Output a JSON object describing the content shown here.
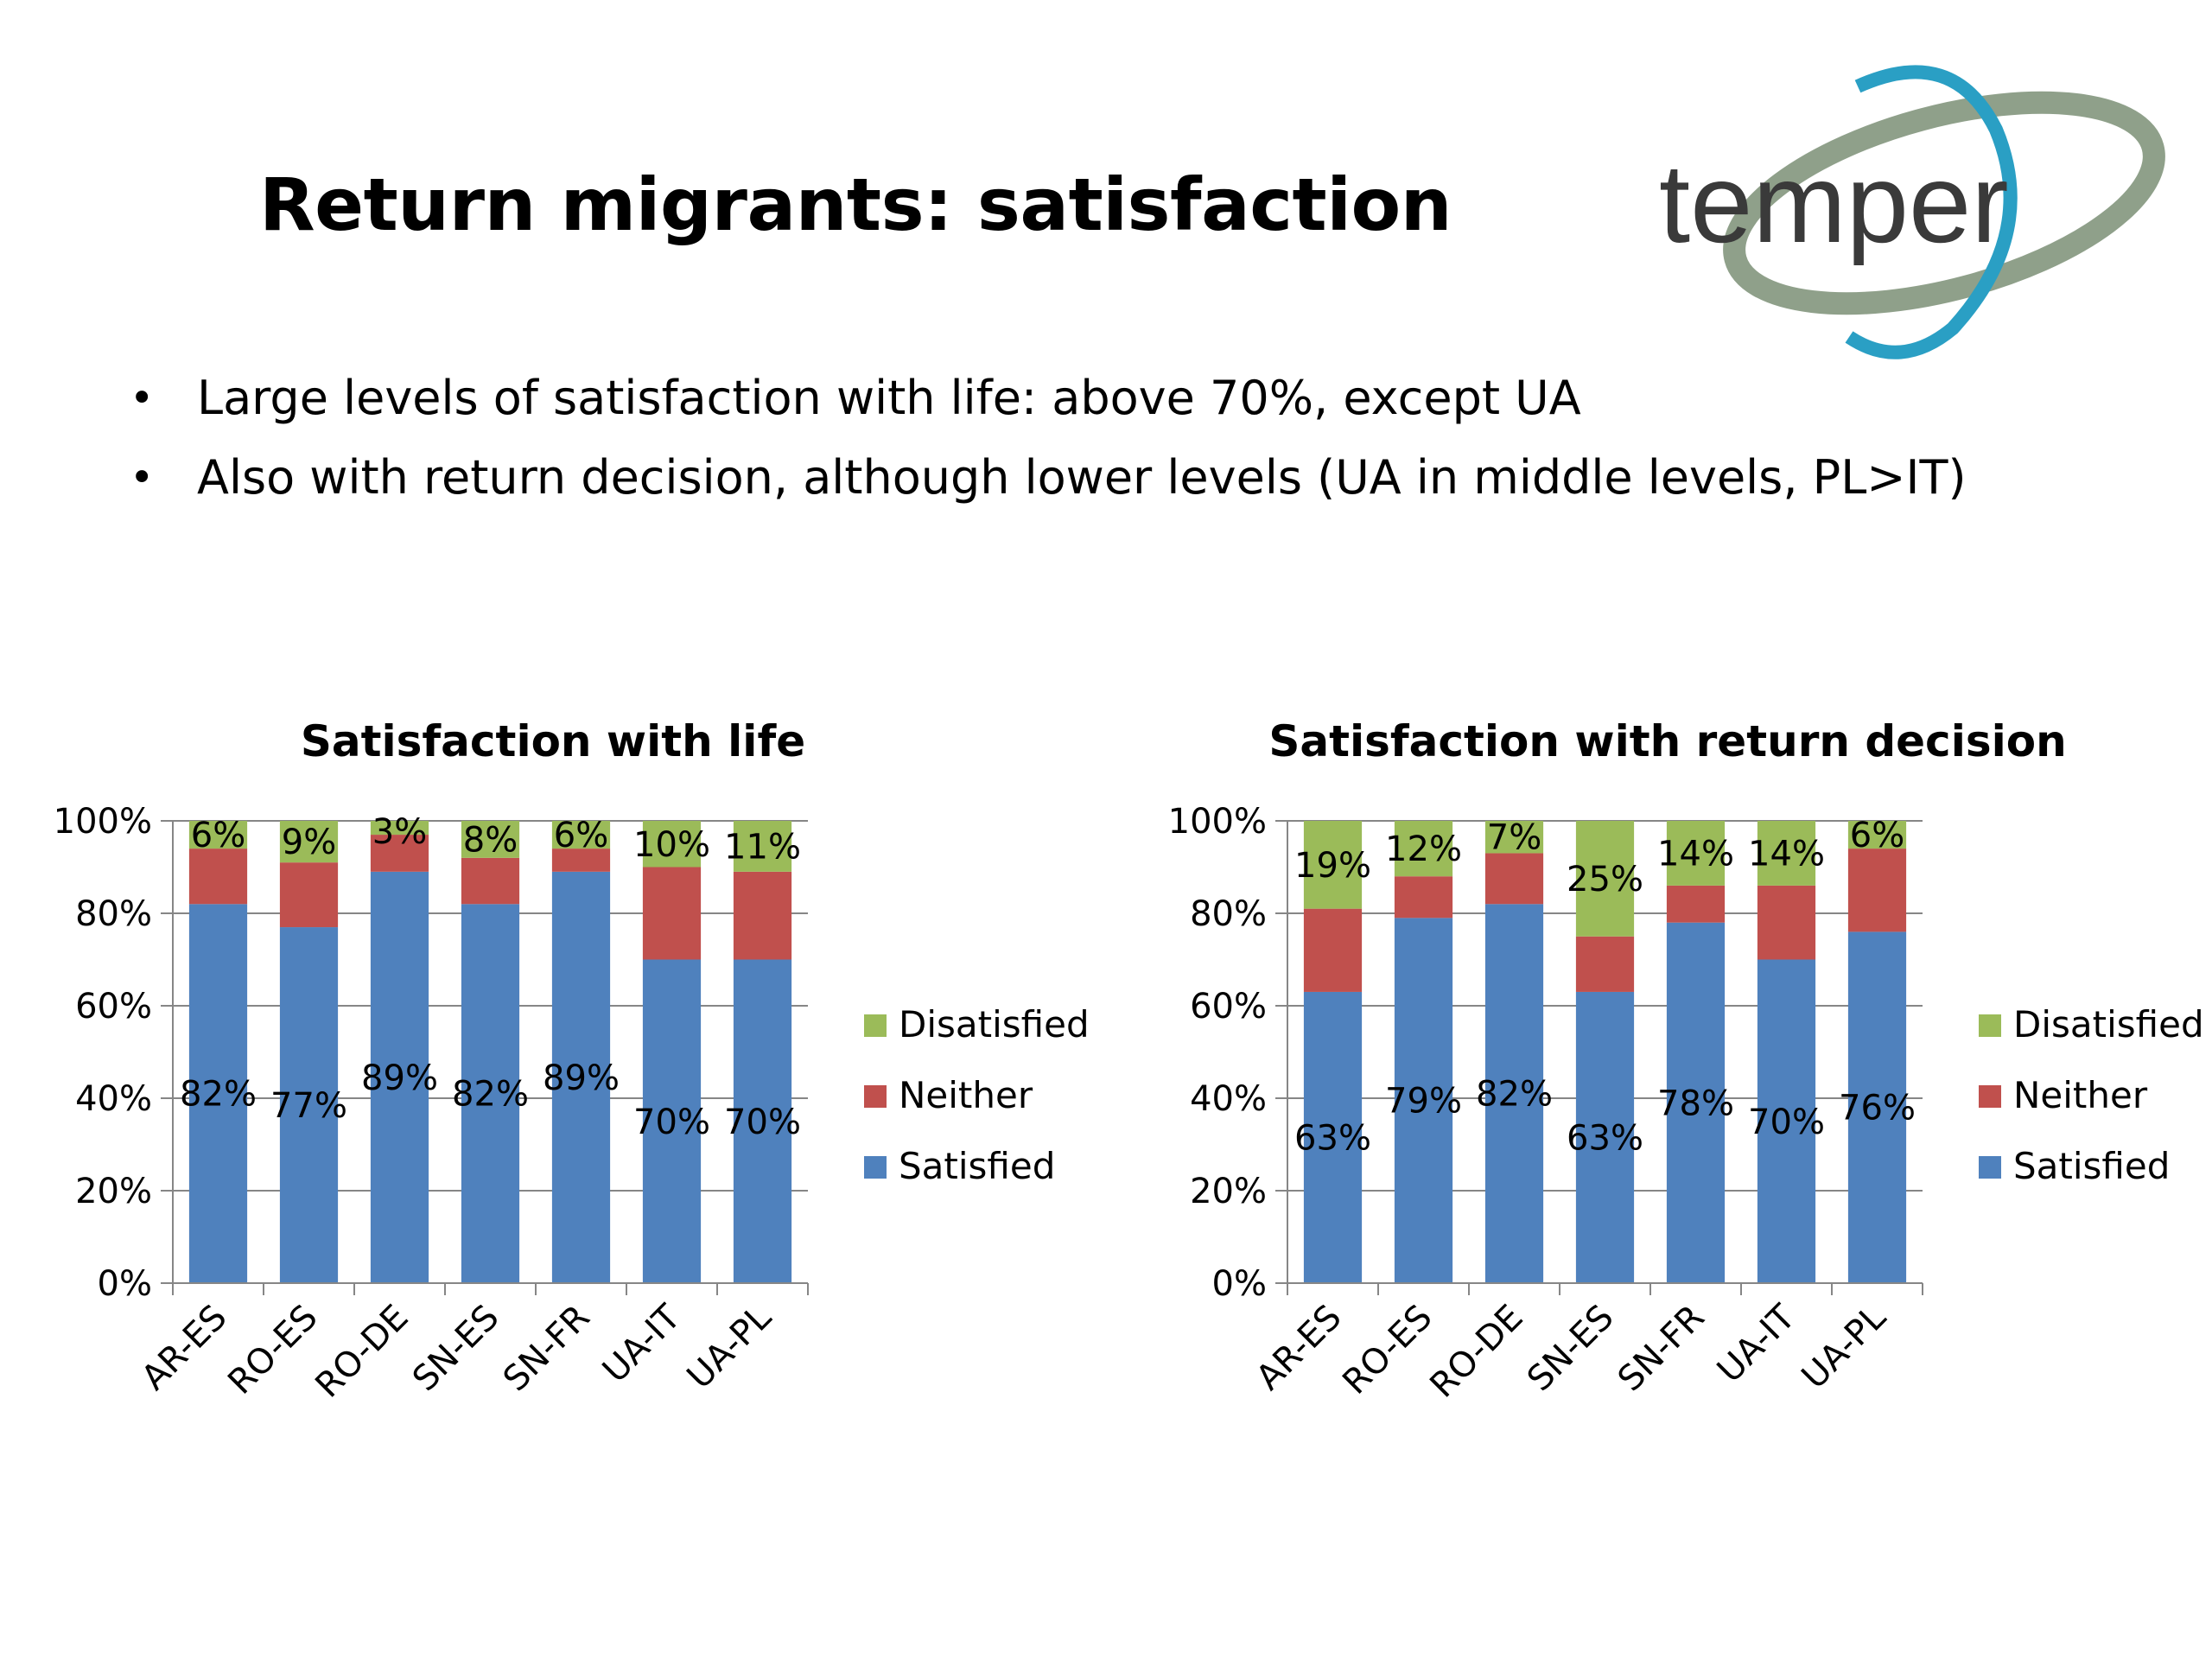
{
  "slide": {
    "title": "Return migrants: satisfaction",
    "bullets": [
      "Large levels of satisfaction with life: above 70%, except UA",
      "Also with return decision, although lower levels (UA in middle levels, PL>IT)"
    ]
  },
  "logo": {
    "text": "temper",
    "colors": {
      "text": "#3a3a3a",
      "ring_outer": "#8fa08a",
      "ring_inner": "#2a9fc4"
    }
  },
  "colors": {
    "Satisfied": "#4f81bd",
    "Neither": "#c0504d",
    "Disatisfied": "#9bbb59"
  },
  "chart_data": [
    {
      "type": "bar",
      "stacked": true,
      "title": "Satisfaction with life",
      "categories": [
        "AR-ES",
        "RO-ES",
        "RO-DE",
        "SN-ES",
        "SN-FR",
        "UA-IT",
        "UA-PL"
      ],
      "series": [
        {
          "name": "Satisfied",
          "values": [
            82,
            77,
            89,
            82,
            89,
            70,
            70
          ],
          "labels": [
            "82%",
            "77%",
            "89%",
            "82%",
            "89%",
            "70%",
            "70%"
          ]
        },
        {
          "name": "Neither",
          "values": [
            12,
            14,
            8,
            10,
            5,
            20,
            19
          ],
          "labels": []
        },
        {
          "name": "Disatisfied",
          "values": [
            6,
            9,
            3,
            8,
            6,
            10,
            11
          ],
          "labels": [
            "6%",
            "9%",
            "3%",
            "8%",
            "6%",
            "10%",
            "11%"
          ]
        }
      ],
      "yticks": [
        "0%",
        "20%",
        "40%",
        "60%",
        "80%",
        "100%"
      ],
      "ylim": [
        0,
        100
      ],
      "grid": true,
      "legend": [
        "Disatisfied",
        "Neither",
        "Satisfied"
      ],
      "legend_position": "right"
    },
    {
      "type": "bar",
      "stacked": true,
      "title": "Satisfaction with return decision",
      "categories": [
        "AR-ES",
        "RO-ES",
        "RO-DE",
        "SN-ES",
        "SN-FR",
        "UA-IT",
        "UA-PL"
      ],
      "series": [
        {
          "name": "Satisfied",
          "values": [
            63,
            79,
            82,
            63,
            78,
            70,
            76
          ],
          "labels": [
            "63%",
            "79%",
            "82%",
            "63%",
            "78%",
            "70%",
            "76%"
          ]
        },
        {
          "name": "Neither",
          "values": [
            18,
            9,
            11,
            12,
            8,
            16,
            18
          ],
          "labels": []
        },
        {
          "name": "Disatisfied",
          "values": [
            19,
            12,
            7,
            25,
            14,
            14,
            6
          ],
          "labels": [
            "19%",
            "12%",
            "7%",
            "25%",
            "14%",
            "14%",
            "6%"
          ]
        }
      ],
      "yticks": [
        "0%",
        "20%",
        "40%",
        "60%",
        "80%",
        "100%"
      ],
      "ylim": [
        0,
        100
      ],
      "grid": true,
      "legend": [
        "Disatisfied",
        "Neither",
        "Satisfied"
      ],
      "legend_position": "right"
    }
  ]
}
